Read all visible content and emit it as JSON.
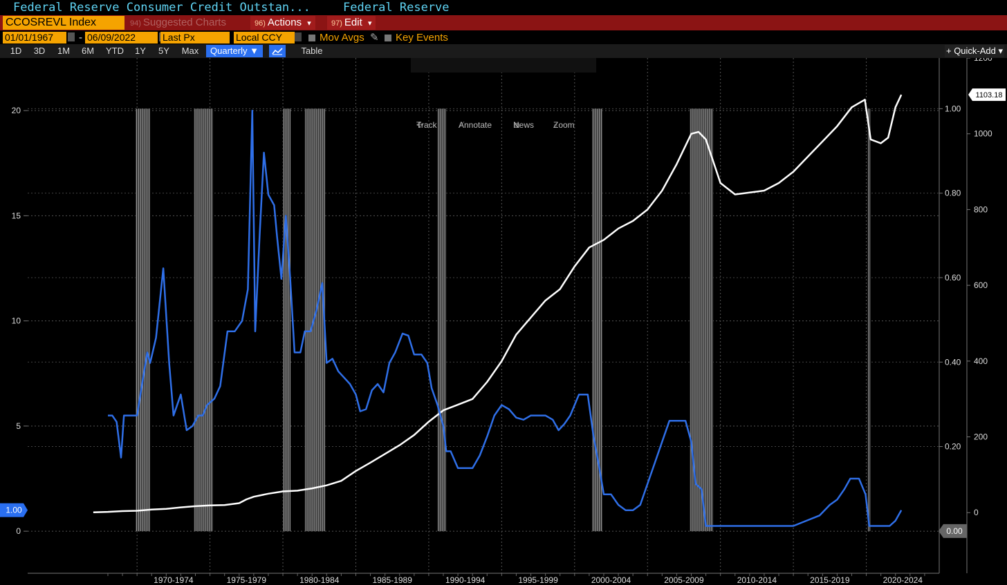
{
  "header": {
    "security_title": "Federal Reserve Consumer Credit Outstan...",
    "source": "Federal Reserve"
  },
  "command_bar": {
    "ticker": "CCOSREVL Index",
    "suggested_num": "94)",
    "suggested_label": "Suggested Charts",
    "actions_num": "96)",
    "actions_label": "Actions",
    "edit_num": "97)",
    "edit_label": "Edit",
    "dropdown_glyph": "▾"
  },
  "params": {
    "start_date": "01/01/1967",
    "date_sep": "-",
    "end_date": "06/09/2022",
    "price_field": "Last Px",
    "currency": "Local CCY",
    "mov_avgs": "Mov Avgs",
    "key_events": "Key Events"
  },
  "range_bar": {
    "ranges": [
      "1D",
      "3D",
      "1M",
      "6M",
      "YTD",
      "1Y",
      "5Y",
      "Max"
    ],
    "frequency": "Quarterly ▼",
    "table_label": "Table",
    "quick_add": "+ Quick-Add ▾"
  },
  "chart_tools": {
    "track": "Track",
    "annotate": "Annotate",
    "news": "News",
    "zoom": "Zoom"
  },
  "chart_data": {
    "type": "line",
    "x_tick_labels": [
      "1970-1974",
      "1975-1979",
      "1980-1984",
      "1985-1989",
      "1990-1994",
      "1995-1999",
      "2000-2004",
      "2005-2009",
      "2010-2014",
      "2015-2019",
      "2020-2024"
    ],
    "left_axis": {
      "range": [
        -2,
        22.5
      ],
      "ticks": [
        "0",
        "5",
        "10",
        "15",
        "20"
      ],
      "tick_values": [
        0,
        5,
        10,
        15,
        20
      ]
    },
    "right_inner_axis": {
      "range": [
        -0.1,
        1.12
      ],
      "ticks": [
        "0.00",
        "0.20",
        "0.40",
        "0.60",
        "0.80",
        "1.00"
      ],
      "tick_values": [
        0,
        0.2,
        0.4,
        0.6,
        0.8,
        1.0
      ]
    },
    "right_outer_axis": {
      "range": [
        -160,
        1200
      ],
      "ticks": [
        "0",
        "200",
        "400",
        "600",
        "800",
        "1000",
        "1200"
      ],
      "tick_values": [
        0,
        200,
        400,
        600,
        800,
        1000,
        1200
      ]
    },
    "last_value_labels": {
      "white": "1103.18",
      "blue_left": "1.00",
      "blue_right": "0.00"
    },
    "recessions": [
      [
        1969.9,
        1970.9
      ],
      [
        1973.9,
        1975.2
      ],
      [
        1980.0,
        1980.5
      ],
      [
        1981.5,
        1982.9
      ],
      [
        1990.6,
        1991.2
      ],
      [
        2001.2,
        2001.9
      ],
      [
        2007.9,
        2009.5
      ],
      [
        2020.1,
        2020.3
      ]
    ],
    "series": [
      {
        "color": "#ffffff",
        "axis": "right_outer",
        "points": [
          [
            1967.0,
            1
          ],
          [
            1968.0,
            2
          ],
          [
            1969.0,
            4
          ],
          [
            1970.0,
            5
          ],
          [
            1971.0,
            8
          ],
          [
            1972.0,
            10
          ],
          [
            1973.0,
            14
          ],
          [
            1974.0,
            17
          ],
          [
            1975.0,
            19
          ],
          [
            1976.0,
            20
          ],
          [
            1977.0,
            25
          ],
          [
            1977.5,
            35
          ],
          [
            1978.0,
            42
          ],
          [
            1979.0,
            50
          ],
          [
            1980.0,
            56
          ],
          [
            1981.0,
            58
          ],
          [
            1982.0,
            64
          ],
          [
            1983.0,
            72
          ],
          [
            1984.0,
            84
          ],
          [
            1985.0,
            110
          ],
          [
            1986.0,
            132
          ],
          [
            1987.0,
            155
          ],
          [
            1988.0,
            178
          ],
          [
            1989.0,
            205
          ],
          [
            1990.0,
            240
          ],
          [
            1991.0,
            270
          ],
          [
            1992.0,
            285
          ],
          [
            1993.0,
            300
          ],
          [
            1994.0,
            345
          ],
          [
            1995.0,
            400
          ],
          [
            1996.0,
            470
          ],
          [
            1997.0,
            515
          ],
          [
            1998.0,
            560
          ],
          [
            1999.0,
            590
          ],
          [
            2000.0,
            650
          ],
          [
            2001.0,
            700
          ],
          [
            2002.0,
            720
          ],
          [
            2003.0,
            750
          ],
          [
            2004.0,
            770
          ],
          [
            2005.0,
            800
          ],
          [
            2006.0,
            850
          ],
          [
            2007.0,
            920
          ],
          [
            2008.0,
            1000
          ],
          [
            2008.5,
            1005
          ],
          [
            2009.0,
            985
          ],
          [
            2010.0,
            870
          ],
          [
            2011.0,
            840
          ],
          [
            2012.0,
            845
          ],
          [
            2013.0,
            850
          ],
          [
            2014.0,
            870
          ],
          [
            2015.0,
            900
          ],
          [
            2016.0,
            940
          ],
          [
            2017.0,
            980
          ],
          [
            2018.0,
            1020
          ],
          [
            2019.0,
            1070
          ],
          [
            2019.9,
            1090
          ],
          [
            2020.3,
            985
          ],
          [
            2021.0,
            975
          ],
          [
            2021.5,
            990
          ],
          [
            2022.0,
            1070
          ],
          [
            2022.4,
            1103.18
          ]
        ]
      },
      {
        "color": "#2f6fe8",
        "axis": "left",
        "points": [
          [
            1968.0,
            5.5
          ],
          [
            1968.3,
            5.5
          ],
          [
            1968.6,
            5.2
          ],
          [
            1968.9,
            3.5
          ],
          [
            1969.1,
            5.5
          ],
          [
            1970.0,
            5.5
          ],
          [
            1970.3,
            6.8
          ],
          [
            1970.7,
            8.5
          ],
          [
            1970.9,
            8.0
          ],
          [
            1971.3,
            9.2
          ],
          [
            1971.8,
            12.5
          ],
          [
            1972.2,
            8.0
          ],
          [
            1972.5,
            5.5
          ],
          [
            1973.0,
            6.5
          ],
          [
            1973.4,
            4.8
          ],
          [
            1973.8,
            5.0
          ],
          [
            1974.2,
            5.5
          ],
          [
            1974.5,
            5.5
          ],
          [
            1974.8,
            6.0
          ],
          [
            1975.3,
            6.3
          ],
          [
            1975.7,
            6.9
          ],
          [
            1976.2,
            9.5
          ],
          [
            1976.7,
            9.5
          ],
          [
            1977.2,
            10.0
          ],
          [
            1977.6,
            11.5
          ],
          [
            1977.9,
            20.0
          ],
          [
            1978.1,
            9.5
          ],
          [
            1978.4,
            14.0
          ],
          [
            1978.7,
            18.0
          ],
          [
            1979.0,
            16.0
          ],
          [
            1979.4,
            15.5
          ],
          [
            1979.6,
            14.0
          ],
          [
            1979.9,
            12.0
          ],
          [
            1980.2,
            15.0
          ],
          [
            1980.5,
            12.0
          ],
          [
            1980.8,
            8.5
          ],
          [
            1981.2,
            8.5
          ],
          [
            1981.5,
            9.5
          ],
          [
            1981.9,
            9.5
          ],
          [
            1982.3,
            10.5
          ],
          [
            1982.7,
            11.8
          ],
          [
            1983.0,
            8.0
          ],
          [
            1983.4,
            8.2
          ],
          [
            1983.8,
            7.6
          ],
          [
            1984.2,
            7.3
          ],
          [
            1984.6,
            7.0
          ],
          [
            1985.0,
            6.5
          ],
          [
            1985.3,
            5.7
          ],
          [
            1985.7,
            5.8
          ],
          [
            1986.1,
            6.7
          ],
          [
            1986.5,
            7.0
          ],
          [
            1986.9,
            6.6
          ],
          [
            1987.3,
            8.0
          ],
          [
            1987.7,
            8.5
          ],
          [
            1988.2,
            9.4
          ],
          [
            1988.6,
            9.3
          ],
          [
            1989.0,
            8.4
          ],
          [
            1989.5,
            8.4
          ],
          [
            1989.9,
            8.0
          ],
          [
            1990.2,
            6.8
          ],
          [
            1990.6,
            6.0
          ],
          [
            1991.0,
            5.0
          ],
          [
            1991.2,
            3.8
          ],
          [
            1991.5,
            3.8
          ],
          [
            1992.0,
            3.0
          ],
          [
            1992.5,
            3.0
          ],
          [
            1993.0,
            3.0
          ],
          [
            1993.5,
            3.6
          ],
          [
            1994.0,
            4.5
          ],
          [
            1994.5,
            5.5
          ],
          [
            1995.0,
            6.0
          ],
          [
            1995.5,
            5.8
          ],
          [
            1996.0,
            5.4
          ],
          [
            1996.5,
            5.3
          ],
          [
            1997.0,
            5.5
          ],
          [
            1997.5,
            5.5
          ],
          [
            1998.0,
            5.5
          ],
          [
            1998.5,
            5.3
          ],
          [
            1998.9,
            4.8
          ],
          [
            1999.3,
            5.1
          ],
          [
            1999.7,
            5.5
          ],
          [
            2000.3,
            6.5
          ],
          [
            2000.9,
            6.5
          ],
          [
            2001.3,
            4.5
          ],
          [
            2001.7,
            3.0
          ],
          [
            2002.0,
            1.75
          ],
          [
            2002.5,
            1.75
          ],
          [
            2003.0,
            1.25
          ],
          [
            2003.5,
            1.0
          ],
          [
            2004.0,
            1.0
          ],
          [
            2004.5,
            1.25
          ],
          [
            2005.0,
            2.25
          ],
          [
            2005.5,
            3.25
          ],
          [
            2006.0,
            4.25
          ],
          [
            2006.5,
            5.25
          ],
          [
            2007.0,
            5.25
          ],
          [
            2007.6,
            5.25
          ],
          [
            2008.0,
            4.25
          ],
          [
            2008.3,
            2.25
          ],
          [
            2008.7,
            2.0
          ],
          [
            2009.0,
            0.25
          ],
          [
            2010.0,
            0.25
          ],
          [
            2011.0,
            0.25
          ],
          [
            2012.0,
            0.25
          ],
          [
            2013.0,
            0.25
          ],
          [
            2014.0,
            0.25
          ],
          [
            2015.0,
            0.25
          ],
          [
            2015.9,
            0.5
          ],
          [
            2016.8,
            0.75
          ],
          [
            2017.5,
            1.25
          ],
          [
            2018.0,
            1.5
          ],
          [
            2018.5,
            2.0
          ],
          [
            2018.9,
            2.5
          ],
          [
            2019.5,
            2.5
          ],
          [
            2019.8,
            2.0
          ],
          [
            2019.95,
            1.75
          ],
          [
            2020.2,
            0.25
          ],
          [
            2021.0,
            0.25
          ],
          [
            2021.6,
            0.25
          ],
          [
            2022.0,
            0.5
          ],
          [
            2022.4,
            1.0
          ]
        ]
      }
    ]
  }
}
